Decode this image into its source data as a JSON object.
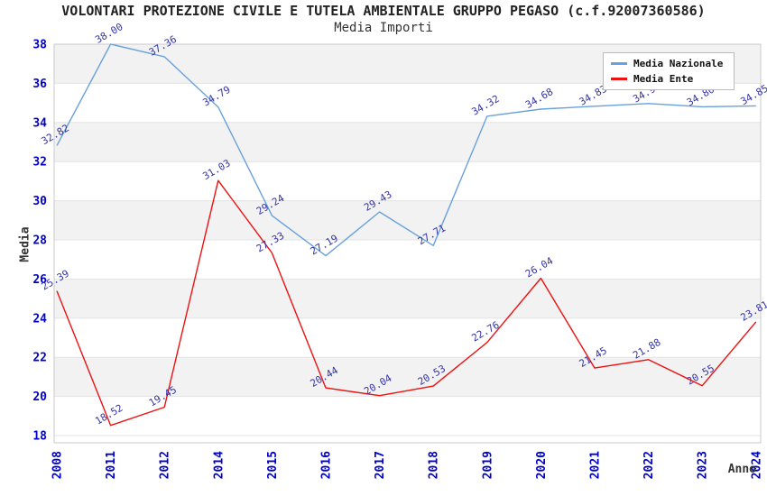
{
  "header": {
    "title": "VOLONTARI PROTEZIONE CIVILE E TUTELA AMBIENTALE GRUPPO PEGASO (c.f.92007360586)",
    "subtitle": "Media Importi"
  },
  "chart_data": {
    "type": "line",
    "x_categories": [
      "2008",
      "2011",
      "2012",
      "2014",
      "2015",
      "2016",
      "2017",
      "2018",
      "2019",
      "2020",
      "2021",
      "2022",
      "2023",
      "2024"
    ],
    "series": [
      {
        "name": "Media Nazionale",
        "color": "#68a1dc",
        "values": [
          32.82,
          38.0,
          37.36,
          34.79,
          29.24,
          27.19,
          29.43,
          27.71,
          34.32,
          34.68,
          34.83,
          34.97,
          34.8,
          34.85
        ],
        "labels": [
          "32.82",
          "38.00",
          "37.36",
          "34.79",
          "29.24",
          "27.19",
          "29.43",
          "27.71",
          "34.32",
          "34.68",
          "34.83",
          "34.97",
          "34.80",
          "34.85"
        ]
      },
      {
        "name": "Media Ente",
        "color": "#ee1111",
        "values": [
          25.39,
          18.52,
          19.45,
          31.03,
          27.33,
          20.44,
          20.04,
          20.53,
          22.76,
          26.04,
          21.45,
          21.88,
          20.55,
          23.81
        ],
        "labels": [
          "25.39",
          "18.52",
          "19.45",
          "31.03",
          "27.33",
          "20.44",
          "20.04",
          "20.53",
          "22.76",
          "26.04",
          "21.45",
          "21.88",
          "20.55",
          "23.81"
        ]
      }
    ],
    "xlabel": "Anno",
    "ylabel": "Media",
    "ylim": [
      18,
      38
    ],
    "y_ticks": [
      38,
      36,
      34,
      32,
      30,
      28,
      26,
      24,
      22,
      20,
      18
    ],
    "legend_position": "top-right",
    "grid": "horizontal-bands"
  },
  "colors": {
    "point_label": "#3434a8",
    "tick_label": "#0000cc",
    "band_fill": "#f2f2f2",
    "grid_line": "#e3e3e3",
    "plot_border": "#c9c9c9"
  }
}
